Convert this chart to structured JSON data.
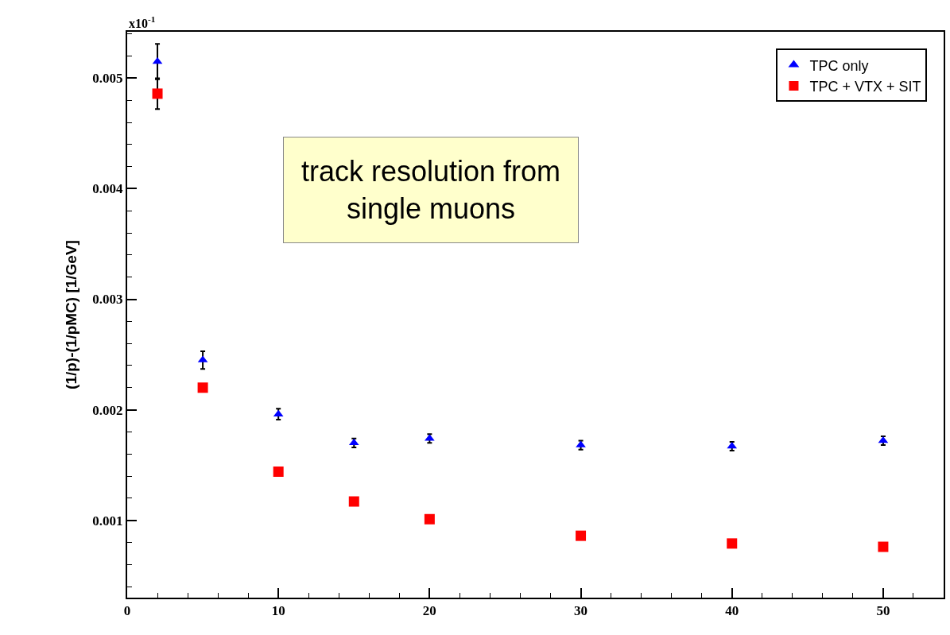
{
  "chart_data": {
    "type": "scatter",
    "ylabel": "(1/p)-(1/pMC) [1/GeV]",
    "annotations": [
      "x10$^{-1}$",
      "track resolution from\nsingle muons"
    ],
    "x": [
      2,
      5,
      10,
      15,
      20,
      30,
      40,
      50
    ],
    "series": [
      {
        "name": "TPC only",
        "color": "#0000ff",
        "marker": "triangle",
        "values": [
          0.00515,
          0.00245,
          0.00196,
          0.0017,
          0.00174,
          0.00168,
          0.00167,
          0.00172
        ],
        "errors": [
          0.00016,
          8e-05,
          5e-05,
          4e-05,
          4e-05,
          4e-05,
          4e-05,
          4e-05
        ]
      },
      {
        "name": "TPC + VTX + SIT",
        "color": "#ff0000",
        "marker": "square",
        "values": [
          0.00486,
          0.0022,
          0.00144,
          0.00117,
          0.00101,
          0.00086,
          0.00079,
          0.00076
        ],
        "errors": [
          0.00014,
          null,
          null,
          null,
          null,
          null,
          null,
          null
        ]
      }
    ],
    "xlim": [
      0,
      54
    ],
    "xticks": [
      0,
      10,
      20,
      30,
      40,
      50
    ],
    "ylim": [
      0.0003,
      0.00542
    ],
    "yticks": [
      0.001,
      0.002,
      0.003,
      0.004,
      0.005
    ],
    "legend": "top right"
  }
}
